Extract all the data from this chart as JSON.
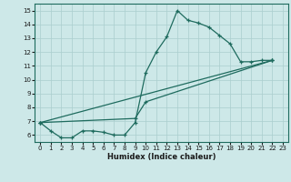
{
  "xlabel": "Humidex (Indice chaleur)",
  "xlim": [
    -0.5,
    23.5
  ],
  "ylim": [
    5.5,
    15.5
  ],
  "xticks": [
    0,
    1,
    2,
    3,
    4,
    5,
    6,
    7,
    8,
    9,
    10,
    11,
    12,
    13,
    14,
    15,
    16,
    17,
    18,
    19,
    20,
    21,
    22,
    23
  ],
  "yticks": [
    6,
    7,
    8,
    9,
    10,
    11,
    12,
    13,
    14,
    15
  ],
  "background_color": "#cde8e8",
  "grid_color": "#aacece",
  "line_color": "#1e6b5e",
  "line1_x": [
    0,
    1,
    2,
    3,
    4,
    5,
    6,
    7,
    8,
    9,
    10,
    11,
    12,
    13,
    14,
    15,
    16,
    17,
    18,
    19,
    20,
    21,
    22
  ],
  "line1_y": [
    6.9,
    6.3,
    5.8,
    5.8,
    6.3,
    6.3,
    6.2,
    6.0,
    6.0,
    6.9,
    10.5,
    12.0,
    13.1,
    15.0,
    14.3,
    14.1,
    13.8,
    13.2,
    12.6,
    11.3,
    11.3,
    11.4,
    11.4
  ],
  "line2_x": [
    0,
    22
  ],
  "line2_y": [
    6.9,
    11.4
  ],
  "line3_x": [
    0,
    9,
    10,
    22
  ],
  "line3_y": [
    6.9,
    7.2,
    8.4,
    11.4
  ]
}
